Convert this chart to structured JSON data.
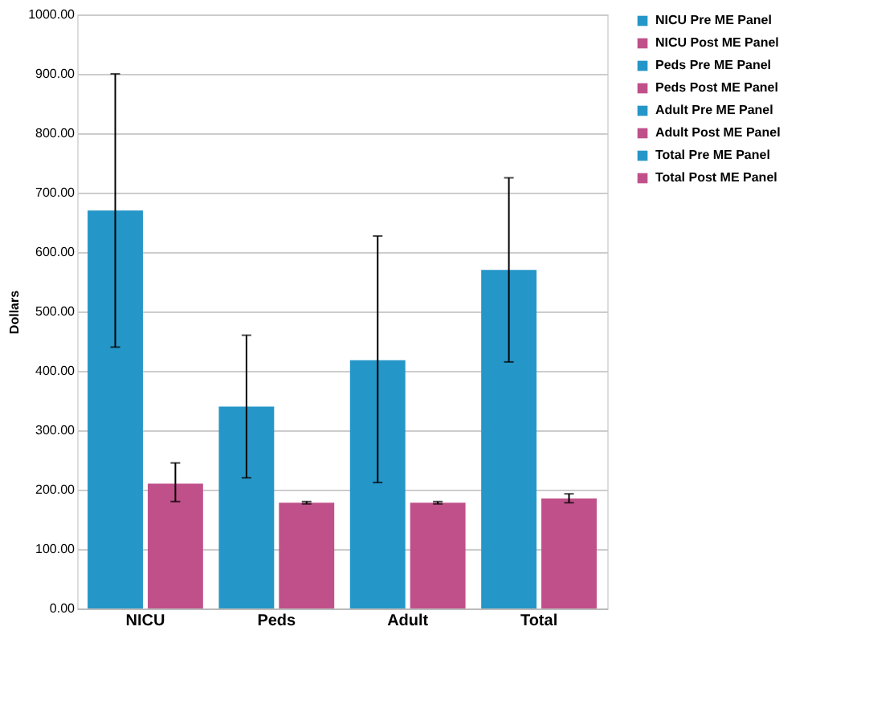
{
  "chart_data": {
    "type": "bar",
    "ylabel": "Dollars",
    "categories": [
      "NICU",
      "Peds",
      "Adult",
      "Total"
    ],
    "series": [
      {
        "name": "NICU Pre ME Panel",
        "color": "#2596c8",
        "values": [
          670,
          null,
          null,
          null
        ],
        "errors": [
          [
            440,
            900
          ],
          null,
          null,
          null
        ]
      },
      {
        "name": "NICU Post ME Panel",
        "color": "#c0508a",
        "values": [
          210,
          null,
          null,
          null
        ],
        "errors": [
          [
            180,
            245
          ],
          null,
          null,
          null
        ]
      },
      {
        "name": "Peds Pre ME Panel",
        "color": "#2596c8",
        "values": [
          null,
          340,
          null,
          null
        ],
        "errors": [
          null,
          [
            220,
            460
          ],
          null,
          null
        ]
      },
      {
        "name": "Peds Post ME Panel",
        "color": "#c0508a",
        "values": [
          null,
          178,
          null,
          null
        ],
        "errors": [
          null,
          [
            176,
            180
          ],
          null,
          null
        ]
      },
      {
        "name": "Adult Pre ME Panel",
        "color": "#2596c8",
        "values": [
          null,
          null,
          418,
          null
        ],
        "errors": [
          null,
          null,
          [
            212,
            627
          ],
          null
        ]
      },
      {
        "name": "Adult Post ME Panel",
        "color": "#c0508a",
        "values": [
          null,
          null,
          178,
          null
        ],
        "errors": [
          null,
          null,
          [
            176,
            180
          ],
          null
        ]
      },
      {
        "name": "Total Pre ME Panel",
        "color": "#2596c8",
        "values": [
          null,
          null,
          null,
          570
        ],
        "errors": [
          null,
          null,
          null,
          [
            415,
            725
          ]
        ]
      },
      {
        "name": "Total Post ME Panel",
        "color": "#c0508a",
        "values": [
          null,
          null,
          null,
          185
        ],
        "errors": [
          null,
          null,
          null,
          [
            178,
            193
          ]
        ]
      }
    ],
    "ylim": [
      0,
      1000
    ],
    "yticks": [
      {
        "value": 0,
        "label": "0.00"
      },
      {
        "value": 100,
        "label": "100.00"
      },
      {
        "value": 200,
        "label": "200.00"
      },
      {
        "value": 300,
        "label": "300.00"
      },
      {
        "value": 400,
        "label": "400.00"
      },
      {
        "value": 500,
        "label": "500.00"
      },
      {
        "value": 600,
        "label": "600.00"
      },
      {
        "value": 700,
        "label": "700.00"
      },
      {
        "value": 800,
        "label": "800.00"
      },
      {
        "value": 900,
        "label": "900.00"
      },
      {
        "value": 1000,
        "label": "1000.00"
      }
    ],
    "grid": "y",
    "legend": "right"
  }
}
